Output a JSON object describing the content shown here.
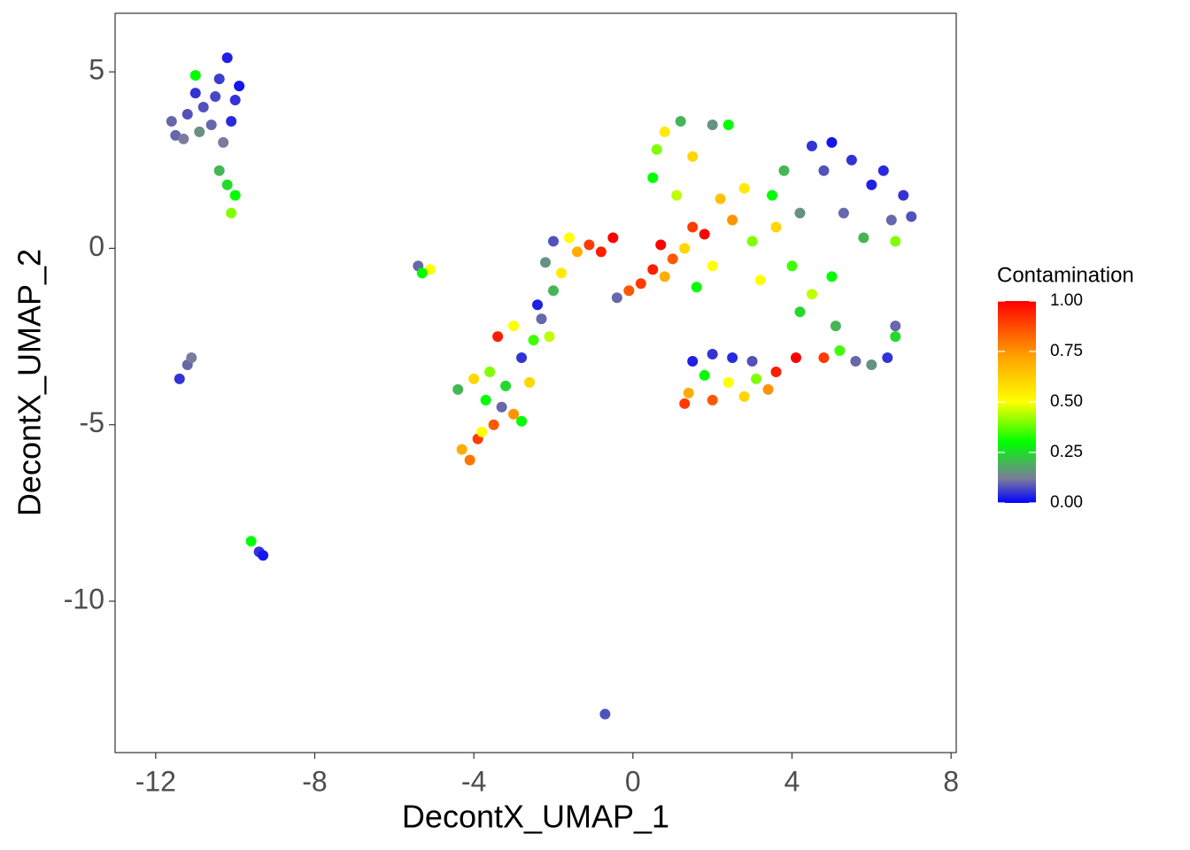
{
  "chart_data": {
    "type": "scatter",
    "x_label": "DecontX_UMAP_1",
    "y_label": "DecontX_UMAP_2",
    "legend_title": "Contamination",
    "xlim": [
      -13.02,
      8.13
    ],
    "ylim": [
      -14.29,
      6.66
    ],
    "xticks": [
      -12,
      -8,
      -4,
      0,
      4,
      8
    ],
    "yticks": [
      -10,
      -5,
      0,
      5
    ],
    "grid": false,
    "colorlim": [
      0,
      1
    ],
    "colorbar_ticks": [
      {
        "value": 0,
        "label": "0.00"
      },
      {
        "value": 0.25,
        "label": "0.25"
      },
      {
        "value": 0.5,
        "label": "0.50"
      },
      {
        "value": 0.75,
        "label": "0.75"
      },
      {
        "value": 1,
        "label": "1.00"
      }
    ],
    "colorscale": {
      "stops": [
        0,
        0.12,
        0.3,
        0.5,
        0.72,
        1
      ],
      "colors": [
        "#0000ff",
        "#7b7b9b",
        "#00ff00",
        "#ffff00",
        "#ffa500",
        "#ff0000"
      ]
    },
    "x": [
      -11.5,
      -11.2,
      -11.0,
      -10.6,
      -10.4,
      -10.2,
      -10.0,
      -10.3,
      -11.6,
      -10.8,
      -10.1,
      -11.3,
      -10.5,
      -9.9,
      -10.9,
      -10.4,
      -10.2,
      -10.0,
      -10.1,
      -11.0,
      -11.4,
      -11.2,
      -11.1,
      -9.6,
      -9.4,
      -9.3,
      -0.7,
      -5.4,
      -5.1,
      -5.3,
      -4.3,
      -4.1,
      -3.9,
      -4.4,
      -4.0,
      -3.7,
      -3.5,
      -3.8,
      -3.3,
      -3.6,
      -3.2,
      -3.0,
      -3.4,
      -3.0,
      -2.8,
      -2.5,
      -2.6,
      -2.3,
      -2.1,
      -2.4,
      -2.0,
      -2.2,
      -2.0,
      -1.8,
      -1.6,
      -1.4,
      -1.1,
      -0.8,
      -0.5,
      -2.8,
      -0.4,
      -0.1,
      0.2,
      0.5,
      0.8,
      0.7,
      1.0,
      1.3,
      1.5,
      1.8,
      2.0,
      1.6,
      0.6,
      0.5,
      0.8,
      1.2,
      1.5,
      1.1,
      2.0,
      2.4,
      2.2,
      2.5,
      2.8,
      3.0,
      3.2,
      3.5,
      3.8,
      3.6,
      4.0,
      4.2,
      4.5,
      4.8,
      5.0,
      5.3,
      5.5,
      5.8,
      6.0,
      6.3,
      6.5,
      6.8,
      7.0,
      6.6,
      5.0,
      4.5,
      4.2,
      5.1,
      5.2,
      5.6,
      6.0,
      6.4,
      6.6,
      6.6,
      4.8,
      1.5,
      2.0,
      2.5,
      3.0,
      1.8,
      2.4,
      3.1,
      1.4,
      2.0,
      2.8,
      3.4,
      1.3,
      3.6,
      4.1
    ],
    "y": [
      3.2,
      3.8,
      4.4,
      3.5,
      4.8,
      5.4,
      4.2,
      3.0,
      3.6,
      4.0,
      3.6,
      3.1,
      4.3,
      4.6,
      3.3,
      2.2,
      1.8,
      1.5,
      1.0,
      4.9,
      -3.7,
      -3.3,
      -3.1,
      -8.3,
      -8.6,
      -8.7,
      -13.2,
      -0.5,
      -0.6,
      -0.7,
      -5.7,
      -6.0,
      -5.4,
      -4.0,
      -3.7,
      -4.3,
      -5.0,
      -5.2,
      -4.5,
      -3.5,
      -3.9,
      -4.7,
      -2.5,
      -2.2,
      -3.1,
      -2.6,
      -3.8,
      -2.0,
      -2.5,
      -1.6,
      -1.2,
      -0.4,
      0.2,
      -0.7,
      0.3,
      -0.1,
      0.1,
      -0.1,
      0.3,
      -4.9,
      -1.4,
      -1.2,
      -1.0,
      -0.6,
      -0.8,
      0.1,
      -0.3,
      0.0,
      0.6,
      0.4,
      -0.5,
      -1.1,
      2.8,
      2.0,
      3.3,
      3.6,
      2.6,
      1.5,
      3.5,
      3.5,
      1.4,
      0.8,
      1.7,
      0.2,
      -0.9,
      1.5,
      2.2,
      0.6,
      -0.5,
      1.0,
      2.9,
      2.2,
      3.0,
      1.0,
      2.5,
      0.3,
      1.8,
      2.2,
      0.8,
      1.5,
      0.9,
      0.2,
      -0.8,
      -1.3,
      -1.8,
      -2.2,
      -2.9,
      -3.2,
      -3.3,
      -3.1,
      -2.5,
      -2.2,
      -3.1,
      -3.2,
      -3.0,
      -3.1,
      -3.2,
      -3.6,
      -3.8,
      -3.7,
      -4.1,
      -4.3,
      -4.2,
      -4.0,
      -4.4,
      -3.5,
      -3.1
    ],
    "contamination": [
      0.1,
      0.08,
      0.05,
      0.1,
      0.06,
      0.03,
      0.05,
      0.12,
      0.1,
      0.08,
      0.04,
      0.12,
      0.07,
      0.02,
      0.15,
      0.2,
      0.25,
      0.3,
      0.4,
      0.3,
      0.05,
      0.1,
      0.12,
      0.3,
      0.05,
      0.02,
      0.08,
      0.1,
      0.5,
      0.3,
      0.7,
      0.8,
      0.9,
      0.2,
      0.6,
      0.3,
      0.85,
      0.5,
      0.1,
      0.4,
      0.25,
      0.75,
      0.95,
      0.5,
      0.05,
      0.35,
      0.6,
      0.1,
      0.45,
      0.03,
      0.2,
      0.15,
      0.08,
      0.55,
      0.5,
      0.7,
      0.9,
      0.95,
      1.0,
      0.3,
      0.1,
      0.85,
      0.9,
      0.95,
      0.7,
      1.0,
      0.85,
      0.6,
      0.9,
      1.0,
      0.5,
      0.3,
      0.4,
      0.3,
      0.55,
      0.2,
      0.6,
      0.45,
      0.15,
      0.3,
      0.65,
      0.75,
      0.55,
      0.4,
      0.5,
      0.3,
      0.2,
      0.6,
      0.35,
      0.15,
      0.05,
      0.08,
      0.02,
      0.1,
      0.05,
      0.2,
      0.03,
      0.04,
      0.1,
      0.05,
      0.08,
      0.4,
      0.3,
      0.45,
      0.25,
      0.2,
      0.35,
      0.1,
      0.15,
      0.05,
      0.25,
      0.1,
      0.9,
      0.03,
      0.05,
      0.04,
      0.08,
      0.3,
      0.5,
      0.4,
      0.7,
      0.85,
      0.6,
      0.75,
      0.9,
      0.95,
      1.0
    ]
  }
}
